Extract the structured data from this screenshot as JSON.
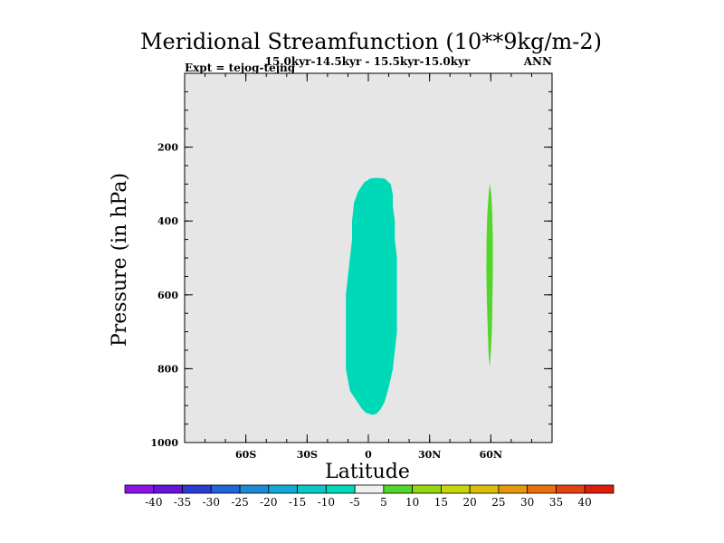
{
  "chart_data": {
    "type": "contour",
    "title": "Meridional Streamfunction (10**9kg/m-2)",
    "subtitle_left": "Expt = tejog-tejng",
    "subtitle_center": "15.0kyr-14.5kyr - 15.5kyr-15.0kyr",
    "subtitle_right": "ANN",
    "xlabel": "Latitude",
    "ylabel": "Pressure (in hPa)",
    "xlim": [
      -90,
      90
    ],
    "ylim": [
      0,
      1000
    ],
    "y_inverted": true,
    "x_ticks": [
      {
        "value": -60,
        "label": "60S"
      },
      {
        "value": -30,
        "label": "30S"
      },
      {
        "value": 0,
        "label": "0"
      },
      {
        "value": 30,
        "label": "30N"
      },
      {
        "value": 60,
        "label": "60N"
      }
    ],
    "y_ticks": [
      {
        "value": 200,
        "label": "200"
      },
      {
        "value": 400,
        "label": "400"
      },
      {
        "value": 600,
        "label": "600"
      },
      {
        "value": 800,
        "label": "800"
      },
      {
        "value": 1000,
        "label": "1000"
      }
    ],
    "background_color": "#e6e6e6",
    "regions": [
      {
        "name": "cyan-region",
        "range": "-10 to -5",
        "color": "#00d9b8",
        "outline": [
          [
            4,
            283
          ],
          [
            8,
            285
          ],
          [
            11,
            300
          ],
          [
            12,
            330
          ],
          [
            12,
            360
          ],
          [
            13,
            400
          ],
          [
            13,
            450
          ],
          [
            14,
            500
          ],
          [
            14,
            550
          ],
          [
            14,
            600
          ],
          [
            14,
            650
          ],
          [
            14,
            700
          ],
          [
            13,
            750
          ],
          [
            12,
            800
          ],
          [
            10,
            850
          ],
          [
            8,
            890
          ],
          [
            6,
            910
          ],
          [
            4,
            922
          ],
          [
            2,
            925
          ],
          [
            -1,
            920
          ],
          [
            -3,
            910
          ],
          [
            -6,
            885
          ],
          [
            -9,
            860
          ],
          [
            -10,
            830
          ],
          [
            -11,
            800
          ],
          [
            -11,
            780
          ],
          [
            -11,
            750
          ],
          [
            -11,
            700
          ],
          [
            -11,
            650
          ],
          [
            -11,
            600
          ],
          [
            -10,
            550
          ],
          [
            -9,
            500
          ],
          [
            -8,
            450
          ],
          [
            -8,
            400
          ],
          [
            -7,
            350
          ],
          [
            -5,
            320
          ],
          [
            -2,
            295
          ],
          [
            1,
            285
          ]
        ]
      },
      {
        "name": "green-region",
        "range": "5 to 10",
        "color": "#52d62a",
        "outline": [
          [
            59.5,
            298
          ],
          [
            60.3,
            330
          ],
          [
            60.7,
            380
          ],
          [
            61.0,
            450
          ],
          [
            61.0,
            540
          ],
          [
            60.8,
            620
          ],
          [
            60.5,
            700
          ],
          [
            60.0,
            760
          ],
          [
            59.5,
            796
          ],
          [
            58.9,
            760
          ],
          [
            58.5,
            700
          ],
          [
            58.1,
            620
          ],
          [
            57.8,
            540
          ],
          [
            57.9,
            450
          ],
          [
            58.3,
            380
          ],
          [
            58.9,
            330
          ]
        ]
      }
    ],
    "colorbar": {
      "labels": [
        "-40",
        "-35",
        "-30",
        "-25",
        "-20",
        "-15",
        "-10",
        "-5",
        "5",
        "10",
        "15",
        "20",
        "25",
        "30",
        "35",
        "40"
      ],
      "colors": [
        "#8a13e8",
        "#6614dc",
        "#2a3cd2",
        "#2166d4",
        "#1d8ad6",
        "#11a8d4",
        "#0ac8c8",
        "#00d9b8",
        "#f0f0f0",
        "#52d62a",
        "#96d60e",
        "#c8d50a",
        "#dcbd0a",
        "#e59a0a",
        "#e8720a",
        "#e5420f",
        "#dc1e0a"
      ]
    }
  }
}
